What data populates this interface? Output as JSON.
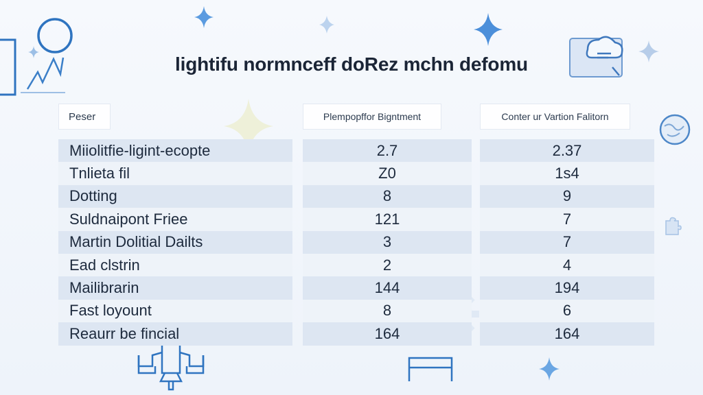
{
  "title": "lightifu normnceff doRez mchn defomu",
  "headers": [
    "Peser",
    "Plempopffor Bigntment",
    "Conter ur Vartion Falitorn"
  ],
  "rows": [
    {
      "name": "Miiolitfie-ligint-ecopte",
      "a": "2.7",
      "b": "2.37"
    },
    {
      "name": "Tnlieta fil",
      "a": "Z0",
      "b": "1s4"
    },
    {
      "name": "Dotting",
      "a": "8",
      "b": "9"
    },
    {
      "name": "Suldnaipont Friee",
      "a": "121",
      "b": "7"
    },
    {
      "name": "Martin Dolitial Dailts",
      "a": "3",
      "b": "7"
    },
    {
      "name": "Ead clstrin",
      "a": "2",
      "b": "4"
    },
    {
      "name": "Mailibrarin",
      "a": "144",
      "b": "194"
    },
    {
      "name": "Fast loyount",
      "a": "8",
      "b": "6"
    },
    {
      "name": "Reaurr be fincial",
      "a": "164",
      "b": "164"
    }
  ],
  "colors": {
    "accent": "#2f74c0",
    "sparkle": "#5b9be0",
    "row_odd": "#dde6f2",
    "row_even": "#eef3f9"
  },
  "icons": [
    "magnifier-chart-icon",
    "sparkle-icon",
    "cloud-document-icon",
    "globe-icon",
    "gear-icon",
    "rocket-icon",
    "frame-icon",
    "puzzle-icon"
  ]
}
